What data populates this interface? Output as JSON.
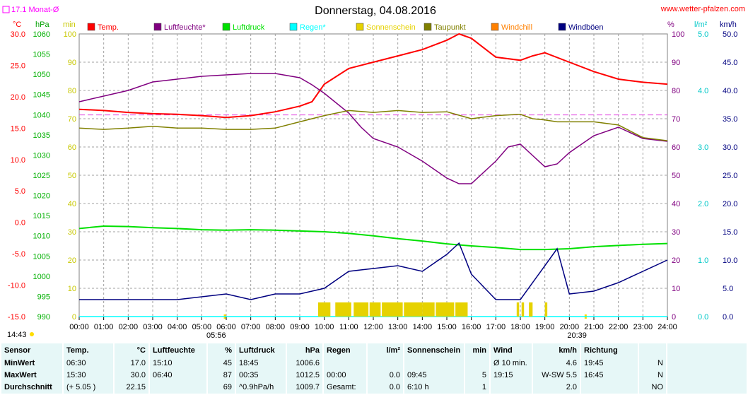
{
  "chart_data": {
    "type": "line",
    "title": "Donnerstag, 04.08.2016",
    "site": "www.wetter-pfalzen.com",
    "month_avg_label": "17.1 Monat-Ø",
    "month_avg_temp": 17.1,
    "axes": {
      "temp": {
        "unit": "°C",
        "range": [
          -15,
          30
        ],
        "ticks": [
          "30.0",
          "25.0",
          "20.0",
          "15.0",
          "10.0",
          "5.0",
          "0.0",
          "-5.0",
          "-10.0",
          "-15.0"
        ],
        "color": "#ff0000"
      },
      "pressure": {
        "unit": "hPa",
        "range": [
          990,
          1060
        ],
        "ticks": [
          "1060",
          "1055",
          "1050",
          "1045",
          "1040",
          "1035",
          "1030",
          "1025",
          "1020",
          "1015",
          "1010",
          "1005",
          "1000",
          "995",
          "990"
        ],
        "color": "#00b000"
      },
      "min": {
        "unit": "min",
        "range": [
          0,
          100
        ],
        "ticks": [
          "100",
          "90",
          "80",
          "70",
          "60",
          "50",
          "40",
          "30",
          "20",
          "10",
          "0"
        ],
        "color": "#c8c800"
      },
      "percent": {
        "unit": "%",
        "range": [
          0,
          100
        ],
        "ticks": [
          "100",
          "90",
          "80",
          "70",
          "60",
          "50",
          "40",
          "30",
          "20",
          "10",
          "0"
        ],
        "color": "#800080"
      },
      "rain": {
        "unit": "l/m²",
        "range": [
          0,
          5
        ],
        "ticks": [
          "5.0",
          "4.0",
          "3.0",
          "2.0",
          "1.0",
          "0.0"
        ],
        "color": "#00c8c8"
      },
      "wind": {
        "unit": "km/h",
        "range": [
          0,
          50
        ],
        "ticks": [
          "50.0",
          "45.0",
          "40.0",
          "35.0",
          "30.0",
          "25.0",
          "20.0",
          "15.0",
          "10.0",
          "5.0",
          "0.0"
        ],
        "color": "#000080"
      }
    },
    "x_ticks": [
      "00:00",
      "01:00",
      "02:00",
      "03:00",
      "04:00",
      "05:00",
      "06:00",
      "07:00",
      "08:00",
      "09:00",
      "10:00",
      "11:00",
      "12:00",
      "13:00",
      "14:00",
      "15:00",
      "16:00",
      "17:00",
      "18:00",
      "19:00",
      "20:00",
      "21:00",
      "22:00",
      "23:00",
      "24:00"
    ],
    "sunrise": "05:56",
    "sunset": "20:39",
    "sunrise_h": 5.93,
    "sunset_h": 20.65,
    "daylength": "14:43",
    "legend": [
      {
        "name": "Temp.",
        "color": "#ff0000"
      },
      {
        "name": "Luftfeuchte*",
        "color": "#800080"
      },
      {
        "name": "Luftdruck",
        "color": "#00e000"
      },
      {
        "name": "Regen*",
        "color": "#00ffff"
      },
      {
        "name": "Sonnenschein",
        "color": "#e6d200"
      },
      {
        "name": "Taupunkt",
        "color": "#808000"
      },
      {
        "name": "Windchill",
        "color": "#ff8000"
      },
      {
        "name": "Windböen",
        "color": "#000080"
      }
    ],
    "series": [
      {
        "name": "Temp.",
        "axis": "temp",
        "x": [
          0,
          1,
          2,
          3,
          4,
          5,
          6,
          7,
          8,
          9,
          9.5,
          10,
          11,
          12,
          13,
          14,
          15,
          15.5,
          16,
          17,
          18,
          18.5,
          19,
          20,
          21,
          22,
          23,
          24
        ],
        "values": [
          18.0,
          17.8,
          17.5,
          17.3,
          17.2,
          17.0,
          16.7,
          17.0,
          17.6,
          18.5,
          19.2,
          22.0,
          24.5,
          25.5,
          26.5,
          27.5,
          29.0,
          30.0,
          29.3,
          26.3,
          25.8,
          26.5,
          27.0,
          25.5,
          24.0,
          22.8,
          22.3,
          22.0
        ]
      },
      {
        "name": "Luftfeuchte*",
        "axis": "percent",
        "x": [
          0,
          1,
          2,
          3,
          4,
          5,
          6,
          7,
          8,
          9,
          9.5,
          10,
          11,
          11.5,
          12,
          13,
          14,
          15,
          15.5,
          16,
          17,
          17.5,
          18,
          18.5,
          19,
          19.5,
          20,
          21,
          22,
          23,
          24
        ],
        "values": [
          76,
          78,
          80,
          83,
          84,
          85,
          85.5,
          86,
          86,
          84.5,
          82,
          79,
          72,
          67,
          63,
          60,
          55,
          49,
          47,
          47,
          55,
          60,
          61,
          57,
          53,
          54,
          58,
          64,
          67,
          63,
          62
        ]
      },
      {
        "name": "Luftdruck",
        "axis": "pressure",
        "x": [
          0,
          1,
          2,
          3,
          4,
          5,
          6,
          7,
          8,
          9,
          10,
          11,
          12,
          13,
          14,
          15,
          16,
          17,
          18,
          19,
          20,
          21,
          22,
          23,
          24
        ],
        "values": [
          1011.8,
          1012.4,
          1012.3,
          1012.0,
          1011.8,
          1011.5,
          1011.4,
          1011.5,
          1011.4,
          1011.2,
          1011.0,
          1010.6,
          1010.0,
          1009.3,
          1008.7,
          1008.0,
          1007.5,
          1007.1,
          1006.6,
          1006.6,
          1006.8,
          1007.3,
          1007.6,
          1007.9,
          1008.1
        ]
      },
      {
        "name": "Taupunkt",
        "axis": "temp",
        "x": [
          0,
          1,
          2,
          3,
          4,
          5,
          6,
          7,
          8,
          9,
          10,
          11,
          12,
          13,
          14,
          15,
          16,
          17,
          18,
          18.5,
          19,
          19.5,
          20,
          21,
          22,
          23,
          24
        ],
        "values": [
          15.0,
          14.8,
          15.0,
          15.3,
          15.0,
          15.0,
          14.8,
          14.8,
          15.0,
          16.0,
          17.0,
          17.8,
          17.5,
          17.8,
          17.5,
          17.6,
          16.5,
          17.0,
          17.2,
          16.5,
          16.3,
          16.0,
          16.0,
          16.0,
          15.5,
          13.5,
          13.0
        ]
      },
      {
        "name": "Regen*",
        "axis": "rain",
        "x": [
          0,
          24
        ],
        "values": [
          0,
          0
        ]
      },
      {
        "name": "Windböen",
        "axis": "wind",
        "x": [
          0,
          1,
          2,
          3,
          4,
          5,
          6,
          7,
          8,
          9,
          10,
          11,
          12,
          13,
          14,
          15,
          15.5,
          16,
          17,
          18,
          19,
          19.5,
          20,
          21,
          22,
          23,
          24
        ],
        "values": [
          3.0,
          3.0,
          3.0,
          3.0,
          3.0,
          3.5,
          4.0,
          3.0,
          4.0,
          4.0,
          5.0,
          8.0,
          8.5,
          9.0,
          8.0,
          11.0,
          13.0,
          7.5,
          3.0,
          3.0,
          9.0,
          12.0,
          4.0,
          4.5,
          6.0,
          8.0,
          10.0
        ]
      },
      {
        "name": "Sonnenschein",
        "axis": "min",
        "type": "bar",
        "intervals": [
          [
            9.75,
            10.25
          ],
          [
            10.45,
            11.1
          ],
          [
            11.2,
            11.8
          ],
          [
            11.85,
            12.3
          ],
          [
            12.35,
            13.2
          ],
          [
            13.25,
            14.0
          ],
          [
            14.0,
            14.5
          ],
          [
            14.55,
            15.3
          ],
          [
            15.35,
            15.85
          ],
          [
            17.85,
            17.95
          ],
          [
            18.05,
            18.15
          ],
          [
            18.35,
            18.5
          ],
          [
            19.0,
            19.1
          ]
        ],
        "value": 5
      }
    ],
    "ylim": [
      0,
      100
    ],
    "grid": true
  },
  "stats": {
    "header": [
      "Sensor",
      "Temp.",
      "°C",
      "Luftfeuchte",
      "%",
      "Luftdruck",
      "hPa",
      "Regen",
      "l/m²",
      "Sonnenschein",
      "min",
      "Wind",
      "km/h",
      "Richtung",
      ""
    ],
    "rows": [
      [
        "MinWert",
        "06:30",
        "17.0",
        "15:10",
        "45",
        "18:45",
        "1006.6",
        "",
        "",
        "",
        "",
        "Ø 10 min.",
        "4.6",
        "19:45",
        "N"
      ],
      [
        "MaxWert",
        "15:30",
        "30.0",
        "06:40",
        "87",
        "00:35",
        "1012.5",
        "00:00",
        "0.0",
        "09:45",
        "5",
        "19:15",
        "W-SW 5.5",
        "16:45",
        "N"
      ],
      [
        "Durchschnitt",
        "(+ 5.05 )",
        "22.15",
        "",
        "69",
        "^0.9hPa/h",
        "1009.7",
        "Gesamt:",
        "0.0",
        "6:10 h",
        "1",
        "",
        "2.0",
        "",
        "NO"
      ]
    ]
  }
}
